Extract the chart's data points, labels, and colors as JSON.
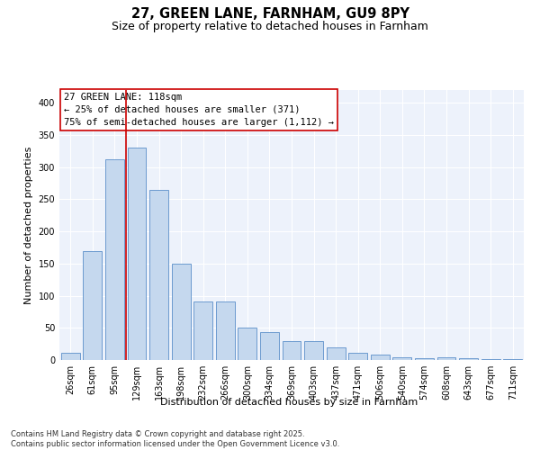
{
  "title": "27, GREEN LANE, FARNHAM, GU9 8PY",
  "subtitle": "Size of property relative to detached houses in Farnham",
  "xlabel": "Distribution of detached houses by size in Farnham",
  "ylabel": "Number of detached properties",
  "categories": [
    "26sqm",
    "61sqm",
    "95sqm",
    "129sqm",
    "163sqm",
    "198sqm",
    "232sqm",
    "266sqm",
    "300sqm",
    "334sqm",
    "369sqm",
    "403sqm",
    "437sqm",
    "471sqm",
    "506sqm",
    "540sqm",
    "574sqm",
    "608sqm",
    "643sqm",
    "677sqm",
    "711sqm"
  ],
  "values": [
    11,
    170,
    312,
    330,
    265,
    150,
    91,
    91,
    50,
    43,
    29,
    29,
    20,
    11,
    9,
    4,
    3,
    4,
    3,
    2,
    2
  ],
  "bar_color": "#c5d8ee",
  "bar_edge_color": "#5b8fc9",
  "vline_color": "#cc0000",
  "annotation_text": "27 GREEN LANE: 118sqm\n← 25% of detached houses are smaller (371)\n75% of semi-detached houses are larger (1,112) →",
  "annotation_box_color": "#ffffff",
  "annotation_box_edge_color": "#cc0000",
  "ylim": [
    0,
    420
  ],
  "yticks": [
    0,
    50,
    100,
    150,
    200,
    250,
    300,
    350,
    400
  ],
  "bg_color": "#edf2fb",
  "footer": "Contains HM Land Registry data © Crown copyright and database right 2025.\nContains public sector information licensed under the Open Government Licence v3.0.",
  "title_fontsize": 10.5,
  "subtitle_fontsize": 9,
  "xlabel_fontsize": 8,
  "ylabel_fontsize": 8,
  "tick_fontsize": 7,
  "annotation_fontsize": 7.5,
  "footer_fontsize": 6
}
